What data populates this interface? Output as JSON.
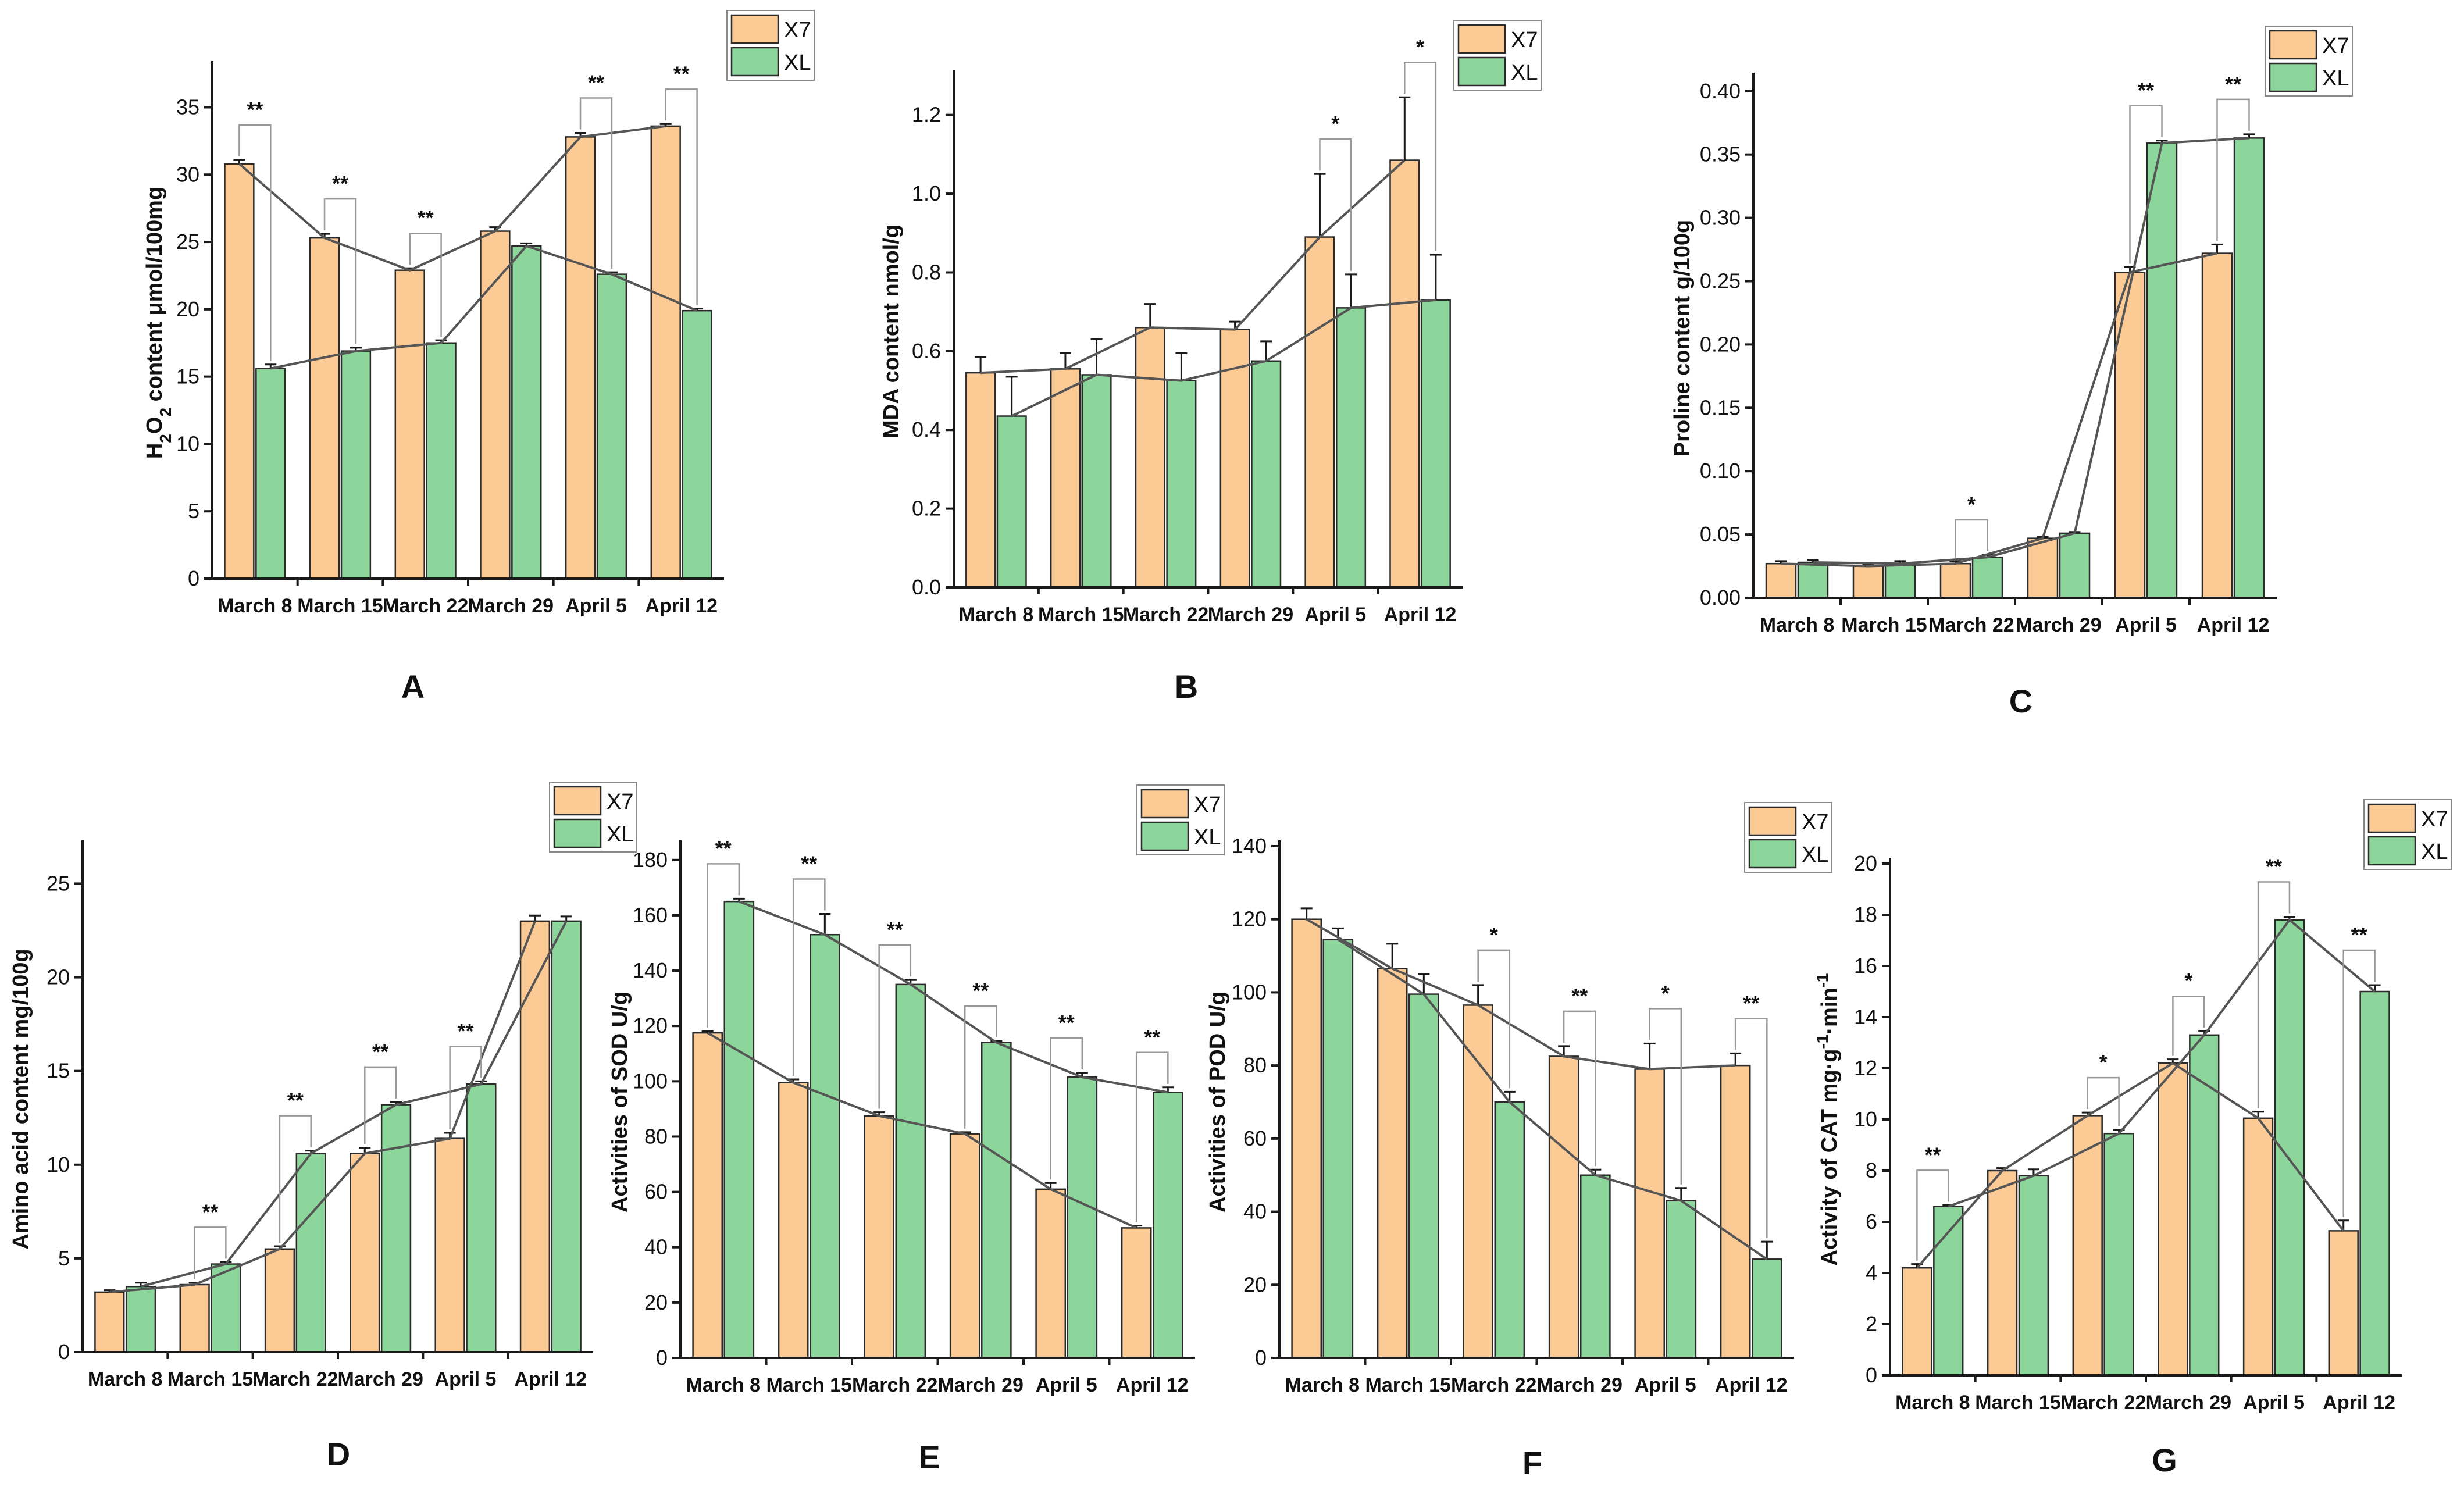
{
  "colors": {
    "x7": "#FCCB95",
    "xl": "#8CD69B"
  },
  "chart_data": [
    {
      "id": "A",
      "type": "bar",
      "panel_label": "A",
      "categories": [
        "March 8",
        "March 15",
        "March 22",
        "March 29",
        "April 5",
        "April 12"
      ],
      "ylabel_parts": [
        "H",
        "2",
        "O",
        "2",
        " content μmol/100mg"
      ],
      "ylim": [
        0,
        38
      ],
      "yticks": [
        0,
        5,
        10,
        15,
        20,
        25,
        30,
        35
      ],
      "series": [
        {
          "name": "X7",
          "values": [
            30.8,
            25.3,
            22.9,
            25.8,
            32.8,
            33.6
          ],
          "errors": [
            0.3,
            0.3,
            0.15,
            0.3,
            0.3,
            0.15
          ]
        },
        {
          "name": "XL",
          "values": [
            15.6,
            16.9,
            17.5,
            24.7,
            22.6,
            19.9
          ],
          "errors": [
            0.3,
            0.25,
            0.2,
            0.2,
            0.15,
            0.15
          ]
        }
      ],
      "significance": [
        "**",
        "**",
        "**",
        "",
        "**",
        "**"
      ],
      "legend": [
        "X7",
        "XL"
      ]
    },
    {
      "id": "B",
      "type": "bar",
      "panel_label": "B",
      "categories": [
        "March 8",
        "March 15",
        "March 22",
        "March 29",
        "April 5",
        "April 12"
      ],
      "ylabel": "MDA content nmol/g",
      "ylim": [
        0,
        1.3
      ],
      "yticks": [
        0.0,
        0.2,
        0.4,
        0.6,
        0.8,
        1.0,
        1.2
      ],
      "ytick_decimals": 1,
      "series": [
        {
          "name": "X7",
          "values": [
            0.545,
            0.555,
            0.66,
            0.655,
            0.89,
            1.085
          ],
          "errors": [
            0.04,
            0.04,
            0.06,
            0.02,
            0.16,
            0.16
          ]
        },
        {
          "name": "XL",
          "values": [
            0.435,
            0.54,
            0.525,
            0.575,
            0.71,
            0.73
          ],
          "errors": [
            0.1,
            0.09,
            0.07,
            0.05,
            0.085,
            0.115
          ]
        }
      ],
      "significance": [
        "",
        "",
        "",
        "",
        "*",
        "*"
      ],
      "legend": [
        "X7",
        "XL"
      ]
    },
    {
      "id": "C",
      "type": "bar",
      "panel_label": "C",
      "categories": [
        "March 8",
        "March 15",
        "March 22",
        "March 29",
        "April 5",
        "April 12"
      ],
      "ylabel": "Proline content g/100g",
      "ylim": [
        0,
        0.41
      ],
      "yticks": [
        0.0,
        0.05,
        0.1,
        0.15,
        0.2,
        0.25,
        0.3,
        0.35,
        0.4
      ],
      "ytick_decimals": 2,
      "series": [
        {
          "name": "X7",
          "values": [
            0.027,
            0.025,
            0.027,
            0.047,
            0.257,
            0.272
          ],
          "errors": [
            0.002,
            0.001,
            0.002,
            0.001,
            0.004,
            0.007
          ]
        },
        {
          "name": "XL",
          "values": [
            0.028,
            0.027,
            0.032,
            0.051,
            0.359,
            0.363
          ],
          "errors": [
            0.002,
            0.002,
            0.002,
            0.001,
            0.002,
            0.003
          ]
        }
      ],
      "significance": [
        "",
        "",
        "*",
        "",
        "**",
        "**"
      ],
      "legend": [
        "X7",
        "XL"
      ]
    },
    {
      "id": "D",
      "type": "bar",
      "panel_label": "D",
      "categories": [
        "March 8",
        "March 15",
        "March 22",
        "March 29",
        "April 5",
        "April 12"
      ],
      "ylabel": "Amino acid content mg/100g",
      "ylim": [
        0,
        27
      ],
      "yticks": [
        0,
        5,
        10,
        15,
        20,
        25
      ],
      "series": [
        {
          "name": "X7",
          "values": [
            3.2,
            3.6,
            5.5,
            10.6,
            11.4,
            23.0
          ],
          "errors": [
            0.1,
            0.1,
            0.15,
            0.3,
            0.3,
            0.3
          ]
        },
        {
          "name": "XL",
          "values": [
            3.5,
            4.7,
            10.6,
            13.2,
            14.3,
            23.0
          ],
          "errors": [
            0.2,
            0.1,
            0.15,
            0.15,
            0.15,
            0.25
          ]
        }
      ],
      "significance": [
        "",
        "**",
        "**",
        "**",
        "**",
        ""
      ],
      "legend": [
        "X7",
        "XL"
      ]
    },
    {
      "id": "E",
      "type": "bar",
      "panel_label": "E",
      "categories": [
        "March 8",
        "March 15",
        "March 22",
        "March 29",
        "April 5",
        "April 12"
      ],
      "ylabel": "Activities of SOD U/g",
      "ylim": [
        0,
        185
      ],
      "yticks": [
        0,
        20,
        40,
        60,
        80,
        100,
        120,
        140,
        160,
        180
      ],
      "series": [
        {
          "name": "X7",
          "values": [
            117.5,
            99.5,
            87.5,
            81.0,
            61.0,
            47.0
          ],
          "errors": [
            0.6,
            1.2,
            1.3,
            0.6,
            2.2,
            0.8
          ]
        },
        {
          "name": "XL",
          "values": [
            165.0,
            153.0,
            135.0,
            114.0,
            101.5,
            96.0
          ],
          "errors": [
            1.0,
            7.5,
            1.6,
            0.6,
            1.5,
            1.8
          ]
        }
      ],
      "significance": [
        "**",
        "**",
        "**",
        "**",
        "**",
        "**"
      ],
      "legend": [
        "X7",
        "XL"
      ]
    },
    {
      "id": "F",
      "type": "bar",
      "panel_label": "F",
      "categories": [
        "March 8",
        "March 15",
        "March 22",
        "March 29",
        "April 5",
        "April 12"
      ],
      "ylabel": "Activities of POD U/g",
      "ylim": [
        0,
        140
      ],
      "yticks": [
        0,
        20,
        40,
        60,
        80,
        100,
        120,
        140
      ],
      "series": [
        {
          "name": "X7",
          "values": [
            120.0,
            106.5,
            96.5,
            82.5,
            79.0,
            80.0
          ],
          "errors": [
            3.0,
            6.8,
            5.5,
            2.8,
            7.0,
            3.3
          ]
        },
        {
          "name": "XL",
          "values": [
            114.5,
            99.5,
            70.0,
            50.0,
            43.0,
            27.0
          ],
          "errors": [
            3.0,
            5.5,
            2.8,
            1.5,
            3.5,
            4.8
          ]
        }
      ],
      "significance": [
        "",
        "",
        "*",
        "**",
        "*",
        "**"
      ],
      "legend": [
        "X7",
        "XL"
      ]
    },
    {
      "id": "G",
      "type": "bar",
      "panel_label": "G",
      "categories": [
        "March 8",
        "March 15",
        "March 22",
        "March 29",
        "April 5",
        "April 12"
      ],
      "ylabel_parts": [
        "Activity of CAT mg·g",
        "-1",
        "·min",
        "-1"
      ],
      "ylim": [
        0,
        20
      ],
      "yticks": [
        0,
        2,
        4,
        6,
        8,
        10,
        12,
        14,
        16,
        18,
        20
      ],
      "series": [
        {
          "name": "X7",
          "values": [
            4.2,
            8.0,
            10.15,
            12.2,
            10.05,
            5.65
          ],
          "errors": [
            0.15,
            0.1,
            0.12,
            0.15,
            0.25,
            0.4
          ]
        },
        {
          "name": "XL",
          "values": [
            6.6,
            7.8,
            9.45,
            13.3,
            17.8,
            15.0
          ],
          "errors": [
            0.05,
            0.25,
            0.15,
            0.15,
            0.12,
            0.25
          ]
        }
      ],
      "significance": [
        "**",
        "",
        "*",
        "*",
        "**",
        "**"
      ],
      "legend": [
        "X7",
        "XL"
      ]
    }
  ]
}
